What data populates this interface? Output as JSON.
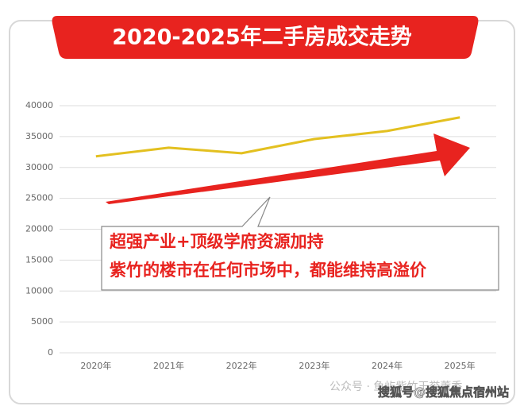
{
  "chart_data": {
    "type": "line",
    "title": "2020-2025年二手房成交走势",
    "categories": [
      "2020年",
      "2021年",
      "2022年",
      "2023年",
      "2024年",
      "2025年"
    ],
    "values": [
      31800,
      33200,
      32300,
      34600,
      35900,
      38100
    ],
    "color": "#e3c020",
    "ylim": [
      0,
      40000
    ],
    "yticks": [
      0,
      5000,
      10000,
      15000,
      20000,
      25000,
      30000,
      35000,
      40000
    ],
    "grid": true,
    "annotations": [
      "超强产业+顶级学府资源加持",
      "紫竹的楼市在任何市场中，都能维持高溢价"
    ],
    "watermarks": [
      "公众号 · 鱼屿紫竹王誉薰香",
      "搜狐号@搜狐焦点宿州站"
    ]
  }
}
